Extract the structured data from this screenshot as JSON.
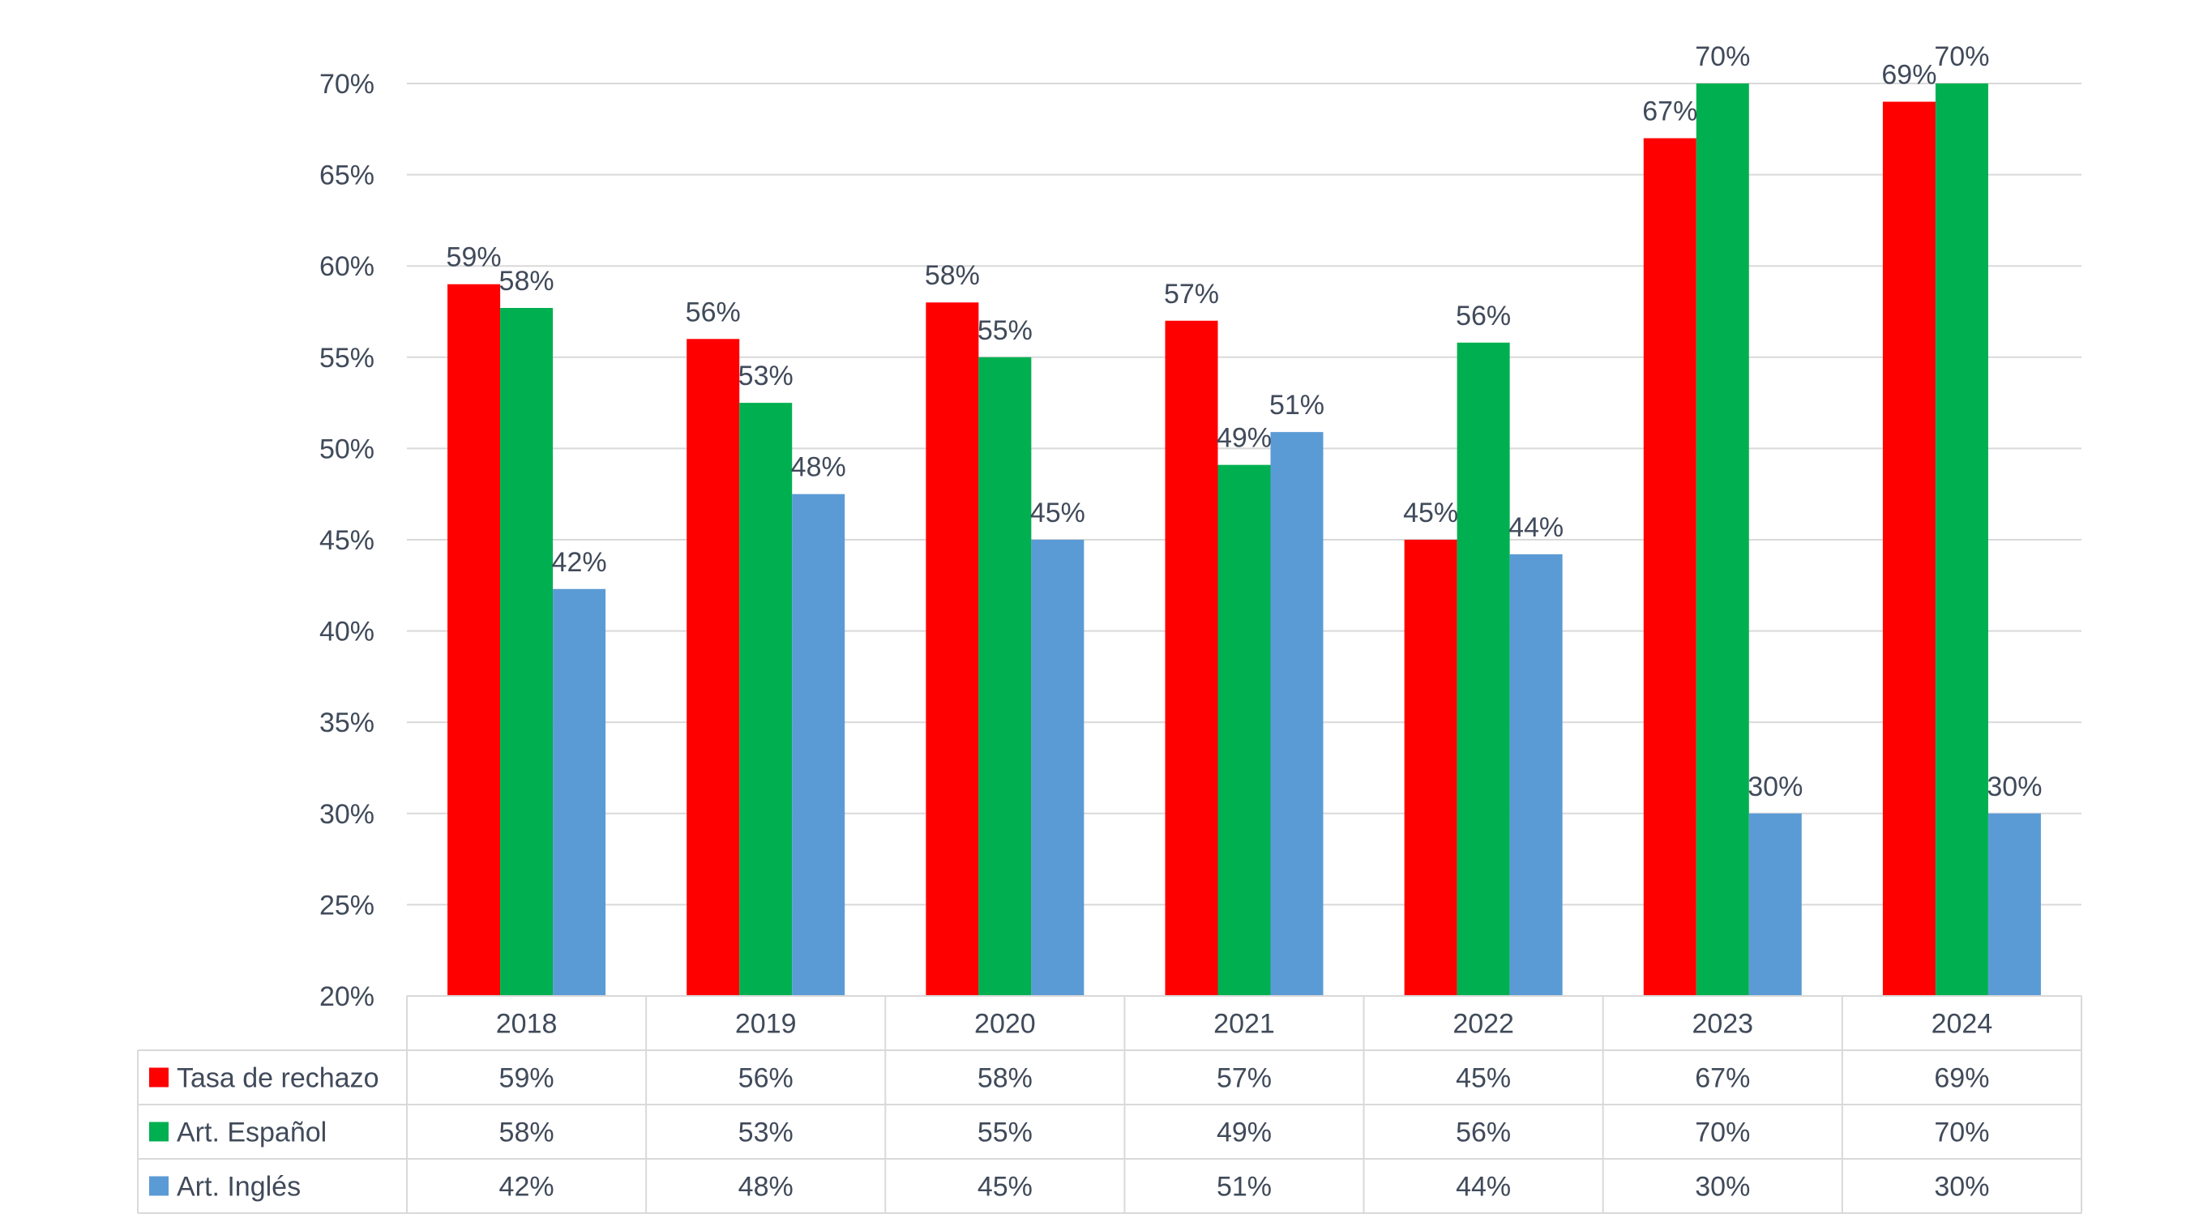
{
  "chart_data": {
    "type": "bar",
    "categories": [
      "2018",
      "2019",
      "2020",
      "2021",
      "2022",
      "2023",
      "2024"
    ],
    "series": [
      {
        "name": "Tasa de rechazo",
        "color": "#FF0000",
        "values": [
          59,
          56,
          58,
          57,
          45,
          67,
          69
        ],
        "labels": [
          "59%",
          "56%",
          "58%",
          "57%",
          "45%",
          "67%",
          "69%"
        ]
      },
      {
        "name": "Art. Español",
        "color": "#00B050",
        "values": [
          57.7,
          52.5,
          55,
          49.1,
          55.8,
          70,
          70
        ],
        "labels": [
          "58%",
          "53%",
          "55%",
          "49%",
          "56%",
          "70%",
          "70%"
        ]
      },
      {
        "name": "Art. Inglés",
        "color": "#5B9BD5",
        "values": [
          42.3,
          47.5,
          45,
          50.9,
          44.2,
          30,
          30
        ],
        "labels": [
          "42%",
          "48%",
          "45%",
          "51%",
          "44%",
          "30%",
          "30%"
        ]
      }
    ],
    "y_ticks": [
      "20%",
      "25%",
      "30%",
      "35%",
      "40%",
      "45%",
      "50%",
      "55%",
      "60%",
      "65%",
      "70%"
    ],
    "ylim": [
      20,
      70
    ],
    "y_step": 5,
    "grid": true,
    "legend": "data-table"
  }
}
